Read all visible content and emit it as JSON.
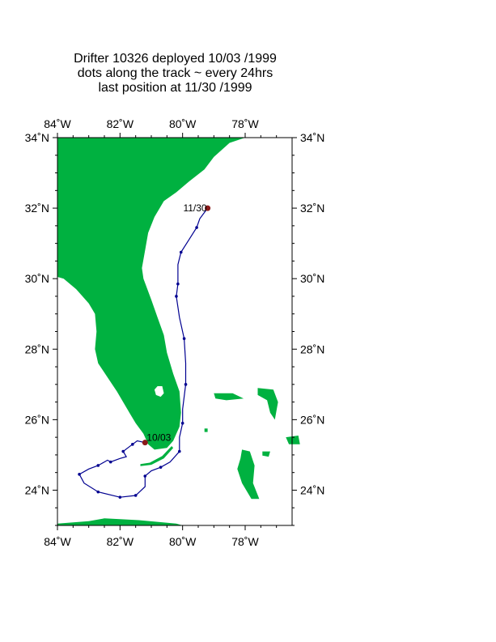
{
  "title": {
    "line1": "Drifter 10326  deployed  10/03 /1999",
    "line2": "dots along the track ~ every 24hrs",
    "line3": "last position at 11/30 /1999"
  },
  "map": {
    "lon_range": [
      -84,
      -76.5
    ],
    "lat_range": [
      23,
      34
    ],
    "lon_ticks": [
      {
        "value": -84,
        "label": "84˚W"
      },
      {
        "value": -82,
        "label": "82˚W"
      },
      {
        "value": -80,
        "label": "80˚W"
      },
      {
        "value": -78,
        "label": "78˚W"
      }
    ],
    "lat_ticks": [
      {
        "value": 34,
        "label": "34˚N"
      },
      {
        "value": 32,
        "label": "32˚N"
      },
      {
        "value": 30,
        "label": "30˚N"
      },
      {
        "value": 28,
        "label": "28˚N"
      },
      {
        "value": 26,
        "label": "26˚N"
      },
      {
        "value": 24,
        "label": "24˚N"
      }
    ],
    "land_color": "#00b140",
    "track_color": "#000090",
    "marker_color": "#8b1a1a",
    "deploy_label": "10/03",
    "last_label": "11/30",
    "deploy_position": [
      -81.2,
      25.35
    ],
    "last_position": [
      -79.2,
      32.0
    ],
    "track": [
      [
        -81.2,
        25.35
      ],
      [
        -81.45,
        25.4
      ],
      [
        -81.6,
        25.3
      ],
      [
        -81.75,
        25.2
      ],
      [
        -81.9,
        25.1
      ],
      [
        -81.8,
        24.95
      ],
      [
        -82.0,
        24.9
      ],
      [
        -82.3,
        24.8
      ],
      [
        -82.4,
        24.85
      ],
      [
        -82.7,
        24.7
      ],
      [
        -83.0,
        24.6
      ],
      [
        -83.3,
        24.45
      ],
      [
        -83.15,
        24.2
      ],
      [
        -82.7,
        23.95
      ],
      [
        -82.0,
        23.8
      ],
      [
        -81.5,
        23.85
      ],
      [
        -81.2,
        24.1
      ],
      [
        -81.2,
        24.4
      ],
      [
        -81.0,
        24.55
      ],
      [
        -80.7,
        24.65
      ],
      [
        -80.4,
        24.8
      ],
      [
        -80.1,
        25.1
      ],
      [
        -80.1,
        25.5
      ],
      [
        -80.0,
        25.9
      ],
      [
        -80.0,
        26.3
      ],
      [
        -79.9,
        27.0
      ],
      [
        -79.9,
        27.6
      ],
      [
        -79.95,
        28.3
      ],
      [
        -80.1,
        28.9
      ],
      [
        -80.2,
        29.5
      ],
      [
        -80.15,
        29.85
      ],
      [
        -80.15,
        30.4
      ],
      [
        -80.05,
        30.75
      ],
      [
        -79.8,
        31.1
      ],
      [
        -79.55,
        31.45
      ],
      [
        -79.45,
        31.7
      ],
      [
        -79.2,
        32.0
      ]
    ],
    "track_dots": [
      [
        -81.6,
        25.3
      ],
      [
        -81.9,
        25.1
      ],
      [
        -82.3,
        24.8
      ],
      [
        -82.7,
        24.7
      ],
      [
        -83.3,
        24.45
      ],
      [
        -82.7,
        23.95
      ],
      [
        -82.0,
        23.8
      ],
      [
        -81.5,
        23.85
      ],
      [
        -81.2,
        24.4
      ],
      [
        -80.7,
        24.65
      ],
      [
        -80.1,
        25.1
      ],
      [
        -80.0,
        25.9
      ],
      [
        -79.9,
        27.0
      ],
      [
        -79.95,
        28.3
      ],
      [
        -80.2,
        29.5
      ],
      [
        -80.15,
        29.85
      ],
      [
        -80.05,
        30.75
      ],
      [
        -79.55,
        31.45
      ]
    ],
    "florida": [
      [
        -84,
        34
      ],
      [
        -78.0,
        34
      ],
      [
        -78.5,
        33.85
      ],
      [
        -79.0,
        33.45
      ],
      [
        -79.3,
        33.1
      ],
      [
        -79.8,
        32.75
      ],
      [
        -80.2,
        32.45
      ],
      [
        -80.6,
        32.2
      ],
      [
        -80.9,
        31.75
      ],
      [
        -81.1,
        31.3
      ],
      [
        -81.2,
        30.8
      ],
      [
        -81.3,
        30.3
      ],
      [
        -81.25,
        30.0
      ],
      [
        -81.0,
        29.4
      ],
      [
        -80.8,
        28.9
      ],
      [
        -80.6,
        28.4
      ],
      [
        -80.5,
        27.9
      ],
      [
        -80.3,
        27.3
      ],
      [
        -80.1,
        26.8
      ],
      [
        -80.05,
        26.2
      ],
      [
        -80.1,
        25.8
      ],
      [
        -80.3,
        25.4
      ],
      [
        -80.5,
        25.2
      ],
      [
        -80.9,
        25.15
      ],
      [
        -81.1,
        25.3
      ],
      [
        -81.25,
        25.6
      ],
      [
        -81.5,
        25.9
      ],
      [
        -81.7,
        26.2
      ],
      [
        -81.9,
        26.5
      ],
      [
        -82.1,
        26.8
      ],
      [
        -82.4,
        27.2
      ],
      [
        -82.7,
        27.6
      ],
      [
        -82.8,
        28.0
      ],
      [
        -82.75,
        28.5
      ],
      [
        -82.8,
        29.0
      ],
      [
        -83.0,
        29.3
      ],
      [
        -83.4,
        29.7
      ],
      [
        -83.8,
        30.0
      ],
      [
        -84,
        30.05
      ]
    ],
    "keys": [
      [
        [
          -81.35,
          24.68
        ],
        [
          -81.0,
          24.72
        ],
        [
          -80.6,
          24.9
        ],
        [
          -80.3,
          25.2
        ],
        [
          -80.35,
          25.25
        ],
        [
          -80.65,
          24.97
        ],
        [
          -81.05,
          24.78
        ],
        [
          -81.35,
          24.74
        ]
      ]
    ],
    "lake": [
      [
        -80.8,
        26.95
      ],
      [
        -80.65,
        26.95
      ],
      [
        -80.6,
        26.75
      ],
      [
        -80.7,
        26.65
      ],
      [
        -80.85,
        26.7
      ],
      [
        -80.9,
        26.85
      ]
    ],
    "bahamas": [
      [
        [
          -78.1,
          25.15
        ],
        [
          -77.85,
          25.1
        ],
        [
          -77.7,
          24.7
        ],
        [
          -77.75,
          24.2
        ],
        [
          -77.55,
          23.75
        ],
        [
          -77.8,
          23.75
        ],
        [
          -78.1,
          24.2
        ],
        [
          -78.25,
          24.6
        ],
        [
          -78.15,
          24.9
        ]
      ],
      [
        [
          -79.0,
          26.75
        ],
        [
          -78.4,
          26.75
        ],
        [
          -78.05,
          26.6
        ],
        [
          -78.6,
          26.55
        ],
        [
          -78.95,
          26.6
        ]
      ],
      [
        [
          -77.6,
          26.9
        ],
        [
          -77.1,
          26.85
        ],
        [
          -76.95,
          26.5
        ],
        [
          -77.05,
          26.0
        ],
        [
          -77.2,
          26.2
        ],
        [
          -77.3,
          26.55
        ],
        [
          -77.6,
          26.7
        ]
      ],
      [
        [
          -76.7,
          25.5
        ],
        [
          -76.3,
          25.55
        ],
        [
          -76.25,
          25.3
        ],
        [
          -76.6,
          25.3
        ]
      ],
      [
        [
          -77.45,
          25.1
        ],
        [
          -77.2,
          25.1
        ],
        [
          -77.25,
          24.95
        ],
        [
          -77.45,
          24.98
        ]
      ],
      [
        [
          -79.3,
          25.75
        ],
        [
          -79.2,
          25.75
        ],
        [
          -79.2,
          25.65
        ],
        [
          -79.3,
          25.65
        ]
      ]
    ],
    "cuba": [
      [
        -84,
        23.05
      ],
      [
        -83.0,
        23.12
      ],
      [
        -82.5,
        23.2
      ],
      [
        -82.0,
        23.18
      ],
      [
        -81.4,
        23.15
      ],
      [
        -80.8,
        23.1
      ],
      [
        -80.2,
        23.05
      ],
      [
        -80.0,
        23.0
      ],
      [
        -84,
        23.0
      ]
    ]
  }
}
